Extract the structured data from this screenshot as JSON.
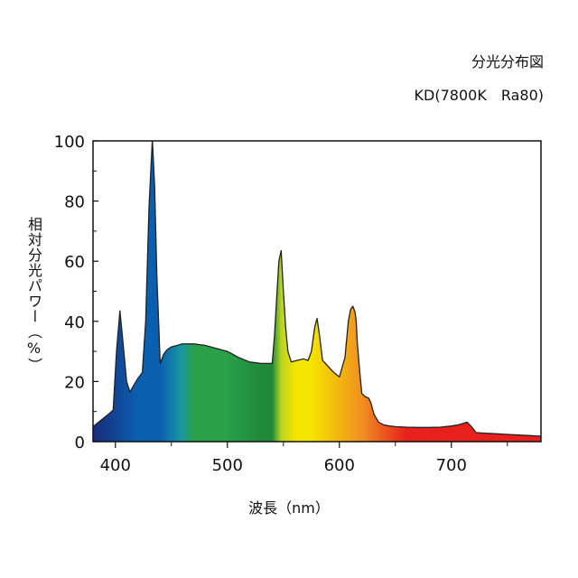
{
  "header": {
    "title": "分光分布図",
    "subtitle": "KD(7800K　Ra80)"
  },
  "chart_data": {
    "type": "area",
    "title": "分光分布図",
    "subtitle": "KD(7800K　Ra80)",
    "xlabel": "波長（nm）",
    "ylabel": "相対分光パワー（%）",
    "xlim": [
      380,
      780
    ],
    "ylim": [
      0,
      100
    ],
    "x_ticks": [
      400,
      500,
      600,
      700
    ],
    "y_ticks": [
      0,
      20,
      40,
      60,
      80,
      100
    ],
    "grid": false,
    "series": [
      {
        "x": [
          380,
          385,
          390,
          395,
          398,
          401,
          404,
          407,
          410,
          413,
          416,
          420,
          424,
          427,
          430,
          433,
          435,
          437,
          440,
          443,
          446,
          450,
          460,
          470,
          480,
          490,
          500,
          510,
          520,
          530,
          540,
          542,
          544,
          546,
          548,
          550,
          552,
          554,
          557,
          562,
          568,
          572,
          575,
          578,
          580,
          582,
          585,
          590,
          595,
          600,
          605,
          608,
          610,
          612,
          614,
          615,
          616,
          618,
          620,
          623,
          626,
          628,
          631,
          635,
          640,
          645,
          650,
          660,
          670,
          680,
          690,
          700,
          705,
          710,
          714,
          718,
          722,
          730,
          740,
          750,
          760,
          770,
          780
        ],
        "y": [
          5,
          6.5,
          8,
          9.5,
          10.5,
          30,
          43.5,
          32,
          20,
          16.5,
          18.5,
          21,
          23,
          40,
          78,
          100.5,
          85,
          55,
          26,
          29,
          30.5,
          31.5,
          32.5,
          32.5,
          32,
          31,
          30,
          28,
          26.5,
          26,
          26,
          35,
          48,
          60,
          63.5,
          50,
          38,
          30,
          26.5,
          27,
          27.5,
          27,
          30,
          38,
          41,
          36,
          27,
          25,
          23,
          21.5,
          28,
          40,
          44,
          45,
          43,
          40,
          33,
          24,
          16,
          15,
          14.5,
          13,
          9,
          6.5,
          5.5,
          5.2,
          5,
          4.8,
          4.7,
          4.7,
          4.8,
          5.2,
          5.5,
          6,
          6.5,
          5,
          3,
          2.8,
          2.6,
          2.4,
          2.2,
          2,
          1.8
        ]
      }
    ],
    "colors": {
      "violet": "#1a2a7a",
      "blue": "#0a5fb0",
      "cyan": "#1a9aa0",
      "green": "#2aa048",
      "green_dark": "#1e8a3a",
      "yellow_green": "#b8d420",
      "yellow": "#f5e400",
      "orange": "#f09020",
      "red": "#e8201e",
      "outline": "#222222"
    }
  }
}
